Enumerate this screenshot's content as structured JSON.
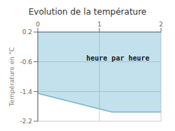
{
  "chart_data": {
    "type": "area",
    "title": "Evolution de la température",
    "ylabel": "Température en °C",
    "x": [
      0,
      1.2,
      2
    ],
    "values": [
      -1.45,
      -1.95,
      -1.95
    ],
    "color": "#6ab4d0",
    "xlim": [
      0,
      2
    ],
    "ylim": [
      -2.2,
      0.2
    ],
    "xticks": [
      0,
      1,
      2
    ],
    "yticks": [
      0.2,
      -0.6,
      -1.4,
      -2.2
    ],
    "grid": true,
    "annotations": [
      {
        "text": "heure par heure",
        "x": 1.3,
        "y": -0.5
      }
    ]
  }
}
